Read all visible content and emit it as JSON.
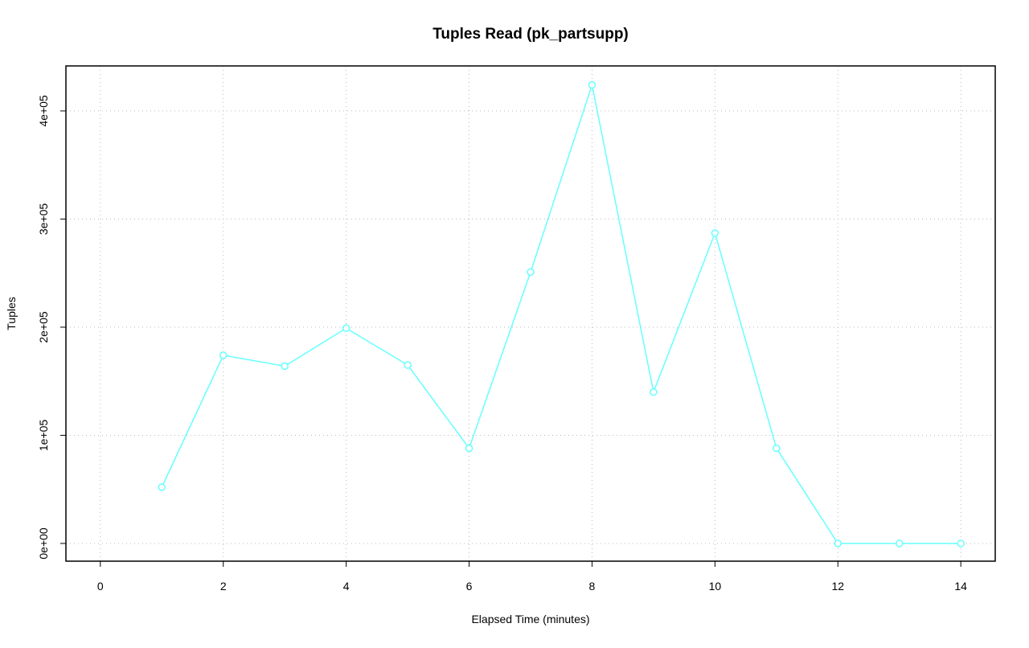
{
  "chart_data": {
    "type": "line",
    "title": "Tuples Read (pk_partsupp)",
    "xlabel": "Elapsed Time (minutes)",
    "ylabel": "Tuples",
    "x": [
      1,
      2,
      3,
      4,
      5,
      6,
      7,
      8,
      9,
      10,
      11,
      12,
      13,
      14
    ],
    "series": [
      {
        "name": "pk_partsupp",
        "color": "#66ffff",
        "values": [
          52000,
          174000,
          164000,
          199000,
          165000,
          88000,
          251000,
          424000,
          140000,
          287000,
          88000,
          0,
          0,
          0
        ]
      }
    ],
    "xlim": [
      -0.56,
      14.56
    ],
    "ylim": [
      -16400,
      441600
    ],
    "xticks": [
      0,
      2,
      4,
      6,
      8,
      10,
      12,
      14
    ],
    "yticks": [
      {
        "value": 0,
        "label": "0e+00"
      },
      {
        "value": 100000,
        "label": "1e+05"
      },
      {
        "value": 200000,
        "label": "2e+05"
      },
      {
        "value": 300000,
        "label": "3e+05"
      },
      {
        "value": 400000,
        "label": "4e+05"
      }
    ],
    "grid": true
  }
}
